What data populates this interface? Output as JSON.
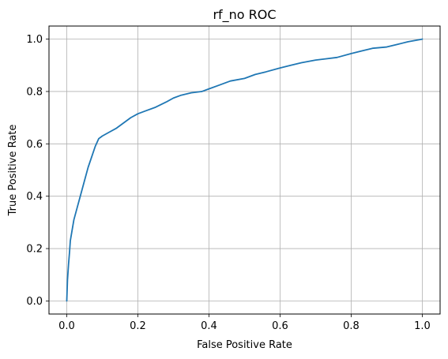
{
  "chart_data": {
    "type": "line",
    "title": "rf_no ROC",
    "xlabel": "False Positive Rate",
    "ylabel": "True Positive Rate",
    "xlim": [
      -0.05,
      1.05
    ],
    "ylim": [
      -0.05,
      1.05
    ],
    "xticks": [
      0.0,
      0.2,
      0.4,
      0.6,
      0.8,
      1.0
    ],
    "yticks": [
      0.0,
      0.2,
      0.4,
      0.6,
      0.8,
      1.0
    ],
    "xtick_labels": [
      "0.0",
      "0.2",
      "0.4",
      "0.6",
      "0.8",
      "1.0"
    ],
    "ytick_labels": [
      "0.0",
      "0.2",
      "0.4",
      "0.6",
      "0.8",
      "1.0"
    ],
    "grid": true,
    "series": [
      {
        "color": "#1f77b4",
        "x": [
          0.0,
          0.002,
          0.005,
          0.008,
          0.01,
          0.015,
          0.02,
          0.03,
          0.04,
          0.05,
          0.06,
          0.07,
          0.08,
          0.09,
          0.1,
          0.12,
          0.14,
          0.16,
          0.18,
          0.2,
          0.22,
          0.25,
          0.28,
          0.3,
          0.32,
          0.35,
          0.38,
          0.4,
          0.43,
          0.46,
          0.5,
          0.53,
          0.56,
          0.6,
          0.63,
          0.66,
          0.7,
          0.73,
          0.76,
          0.8,
          0.83,
          0.86,
          0.9,
          0.93,
          0.96,
          0.98,
          1.0
        ],
        "y": [
          0.0,
          0.08,
          0.14,
          0.19,
          0.23,
          0.27,
          0.31,
          0.36,
          0.41,
          0.46,
          0.51,
          0.55,
          0.59,
          0.62,
          0.63,
          0.645,
          0.66,
          0.68,
          0.7,
          0.715,
          0.725,
          0.74,
          0.76,
          0.775,
          0.785,
          0.795,
          0.8,
          0.81,
          0.825,
          0.84,
          0.85,
          0.865,
          0.875,
          0.89,
          0.9,
          0.91,
          0.92,
          0.925,
          0.93,
          0.945,
          0.955,
          0.965,
          0.97,
          0.98,
          0.99,
          0.995,
          1.0
        ]
      }
    ]
  }
}
